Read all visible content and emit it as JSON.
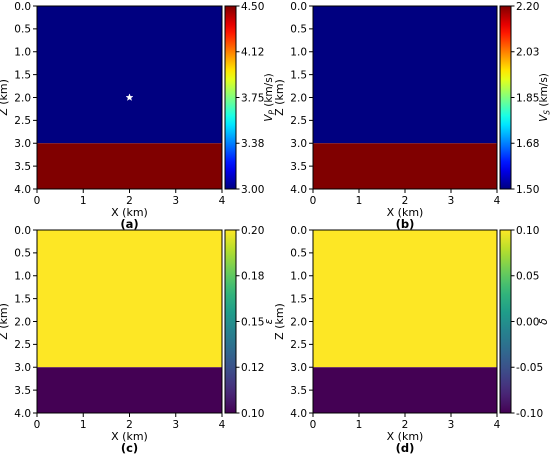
{
  "chart_data": [
    {
      "type": "heatmap",
      "caption": "(a)",
      "xlabel": "X (km)",
      "ylabel": "Z (km)",
      "xlim": [
        0,
        4
      ],
      "ylim": [
        0,
        4
      ],
      "x_ticks": [
        "0",
        "1",
        "2",
        "3",
        "4"
      ],
      "y_ticks": [
        "0.0",
        "0.5",
        "1.0",
        "1.5",
        "2.0",
        "2.5",
        "3.0",
        "3.5",
        "4.0"
      ],
      "layers": [
        {
          "z_from": 0,
          "z_to": 3,
          "value": 3.0
        },
        {
          "z_from": 3,
          "z_to": 4,
          "value": 4.5
        }
      ],
      "marker": {
        "symbol": "star",
        "x": 2,
        "z": 2,
        "color": "#ffffff"
      },
      "colorbar": {
        "label_main": "V",
        "label_sub": "P",
        "label_unit": " (km/s)",
        "italic": true,
        "colormap": "jet",
        "range": [
          3.0,
          4.5
        ],
        "ticks": [
          "3.00",
          "3.38",
          "3.75",
          "4.12",
          "4.50"
        ]
      }
    },
    {
      "type": "heatmap",
      "caption": "(b)",
      "xlabel": "X (km)",
      "ylabel": "Z (km)",
      "xlim": [
        0,
        4
      ],
      "ylim": [
        0,
        4
      ],
      "x_ticks": [
        "0",
        "1",
        "2",
        "3",
        "4"
      ],
      "y_ticks": [
        "0.0",
        "0.5",
        "1.0",
        "1.5",
        "2.0",
        "2.5",
        "3.0",
        "3.5",
        "4.0"
      ],
      "layers": [
        {
          "z_from": 0,
          "z_to": 3,
          "value": 1.5
        },
        {
          "z_from": 3,
          "z_to": 4,
          "value": 2.2
        }
      ],
      "colorbar": {
        "label_main": "V",
        "label_sub": "S",
        "label_unit": " (km/s)",
        "italic": true,
        "colormap": "jet",
        "range": [
          1.5,
          2.2
        ],
        "ticks": [
          "1.50",
          "1.68",
          "1.85",
          "2.03",
          "2.20"
        ]
      }
    },
    {
      "type": "heatmap",
      "caption": "(c)",
      "xlabel": "X (km)",
      "ylabel": "Z (km)",
      "xlim": [
        0,
        4
      ],
      "ylim": [
        0,
        4
      ],
      "x_ticks": [
        "0",
        "1",
        "2",
        "3",
        "4"
      ],
      "y_ticks": [
        "0.0",
        "0.5",
        "1.0",
        "1.5",
        "2.0",
        "2.5",
        "3.0",
        "3.5",
        "4.0"
      ],
      "layers": [
        {
          "z_from": 0,
          "z_to": 3,
          "value": 0.2
        },
        {
          "z_from": 3,
          "z_to": 4,
          "value": 0.1
        }
      ],
      "colorbar": {
        "label_main": "ε",
        "label_sub": "",
        "label_unit": "",
        "italic": true,
        "colormap": "viridis",
        "range": [
          0.1,
          0.2
        ],
        "ticks": [
          "0.10",
          "0.12",
          "0.15",
          "0.18",
          "0.20"
        ]
      }
    },
    {
      "type": "heatmap",
      "caption": "(d)",
      "xlabel": "X (km)",
      "ylabel": "Z (km)",
      "xlim": [
        0,
        4
      ],
      "ylim": [
        0,
        4
      ],
      "x_ticks": [
        "0",
        "1",
        "2",
        "3",
        "4"
      ],
      "y_ticks": [
        "0.0",
        "0.5",
        "1.0",
        "1.5",
        "2.0",
        "2.5",
        "3.0",
        "3.5",
        "4.0"
      ],
      "layers": [
        {
          "z_from": 0,
          "z_to": 3,
          "value": 0.1
        },
        {
          "z_from": 3,
          "z_to": 4,
          "value": -0.1
        }
      ],
      "colorbar": {
        "label_main": "δ",
        "label_sub": "",
        "label_unit": "",
        "italic": true,
        "colormap": "viridis",
        "range": [
          -0.1,
          0.1
        ],
        "ticks": [
          "-0.10",
          "-0.05",
          "0.00",
          "0.05",
          "0.10"
        ]
      }
    }
  ]
}
